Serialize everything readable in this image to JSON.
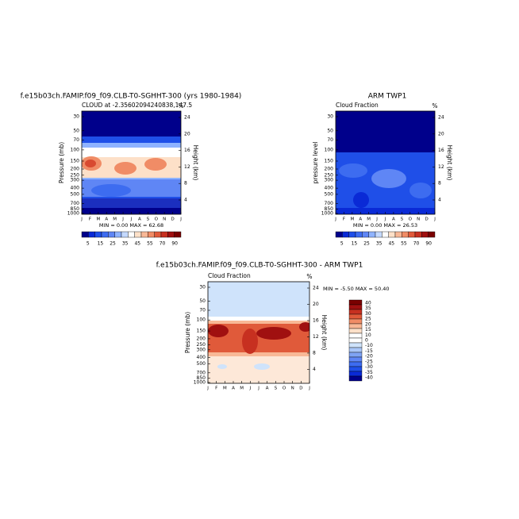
{
  "panels": [
    {
      "title": "f.e15b03ch.FAMIP.f09_f09.CLB-T0-SGHHT-300 (yrs 1980-1984)",
      "subtitle": "CLOUD at -2.35602094240838,147.5",
      "units": "%",
      "y_label": "Pressure (mb)",
      "y2_label": "Height (km)",
      "stats": "MIN =   0.00 MAX =  62.68",
      "colorbar_labels": [
        "5",
        "15",
        "25",
        "35",
        "45",
        "55",
        "70",
        "90"
      ]
    },
    {
      "title": "ARM TWP1",
      "subtitle": "Cloud Fraction",
      "units": "%",
      "y_label": "pressure level",
      "y2_label": "Height (km)",
      "stats": "MIN =   0.00 MAX =  26.53",
      "colorbar_labels": [
        "5",
        "15",
        "25",
        "35",
        "45",
        "55",
        "70",
        "90"
      ]
    },
    {
      "title": "f.e15b03ch.FAMIP.f09_f09.CLB-T0-SGHHT-300 - ARM TWP1",
      "subtitle": "Cloud Fraction",
      "units": "%",
      "y_label": "Pressure (mb)",
      "y2_label": "Height (km)",
      "stats": "MIN =  -5.50 MAX =  50.40",
      "colorbar_labels": [
        "40",
        "35",
        "30",
        "25",
        "20",
        "15",
        "10",
        "0",
        "-10",
        "-15",
        "-20",
        "-25",
        "-30",
        "-35",
        "-40"
      ]
    }
  ],
  "pressure_ticks": [
    "30",
    "50",
    "70",
    "100",
    "150",
    "200",
    "250",
    "300",
    "400",
    "500",
    "700",
    "850",
    "1000"
  ],
  "height_ticks": [
    "24",
    "20",
    "16",
    "12",
    "8",
    "4"
  ],
  "months": [
    "J",
    "F",
    "M",
    "A",
    "M",
    "J",
    "J",
    "A",
    "S",
    "O",
    "N",
    "D",
    "J"
  ]
}
